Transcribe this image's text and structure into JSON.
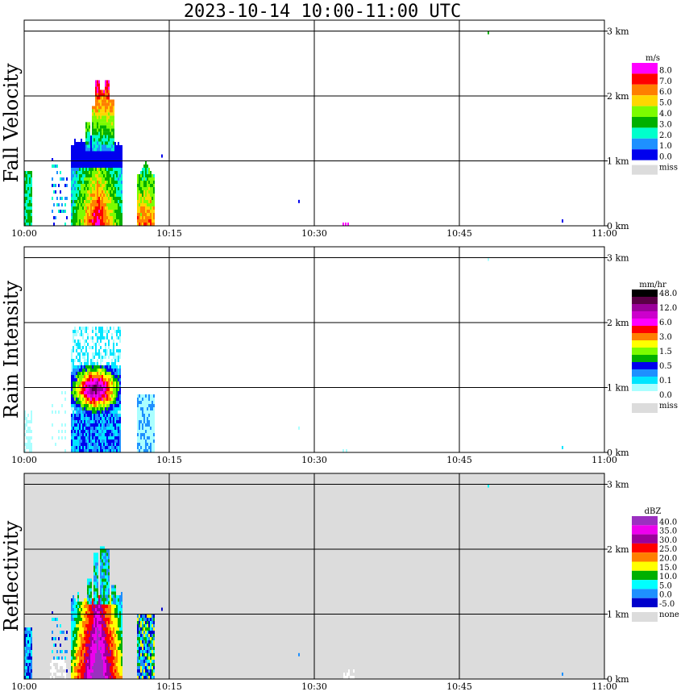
{
  "title": "2023-10-14  10:00-11:00 UTC",
  "x_ticks": [
    "10:00",
    "10:15",
    "10:30",
    "10:45",
    "11:00"
  ],
  "y_ticks": [
    "0 km",
    "1 km",
    "2 km",
    "3 km"
  ],
  "panels": [
    {
      "id": "fall-velocity",
      "ylabel": "Fall Velocity",
      "unit": "m/s",
      "background": "#ffffff",
      "legend": [
        {
          "label": "8.0",
          "color": "#ff00ff"
        },
        {
          "label": "7.0",
          "color": "#ff0000"
        },
        {
          "label": "6.0",
          "color": "#ff7f00"
        },
        {
          "label": "5.0",
          "color": "#ffd700"
        },
        {
          "label": "4.0",
          "color": "#7cfc00"
        },
        {
          "label": "3.0",
          "color": "#00b000"
        },
        {
          "label": "2.0",
          "color": "#00ffcc"
        },
        {
          "label": "1.0",
          "color": "#1e90ff"
        },
        {
          "label": "0.0",
          "color": "#0000ee"
        }
      ],
      "miss_label": "miss",
      "miss_color": "#dcdcdc"
    },
    {
      "id": "rain-intensity",
      "ylabel": "Rain Intensity",
      "unit": "mm/hr",
      "background": "#ffffff",
      "legend": [
        {
          "label": "48.0",
          "color": "#000000"
        },
        {
          "label": "",
          "color": "#5a0046"
        },
        {
          "label": "12.0",
          "color": "#9b009b"
        },
        {
          "label": "",
          "color": "#cc00cc"
        },
        {
          "label": "6.0",
          "color": "#ff00ff"
        },
        {
          "label": "",
          "color": "#ff0000"
        },
        {
          "label": "3.0",
          "color": "#ff7f00"
        },
        {
          "label": "",
          "color": "#ffff00"
        },
        {
          "label": "1.5",
          "color": "#7cfc00"
        },
        {
          "label": "",
          "color": "#00b000"
        },
        {
          "label": "0.5",
          "color": "#0000ee"
        },
        {
          "label": "",
          "color": "#1e90ff"
        },
        {
          "label": "0.1",
          "color": "#00e5ff"
        },
        {
          "label": "",
          "color": "#aaffff"
        },
        {
          "label": "0.0",
          "color": "#ffffff"
        }
      ],
      "miss_label": "miss",
      "miss_color": "#dcdcdc"
    },
    {
      "id": "reflectivity",
      "ylabel": "Reflectivity",
      "unit": "dBZ",
      "background": "#dcdcdc",
      "legend": [
        {
          "label": "40.0",
          "color": "#9b30c0"
        },
        {
          "label": "35.0",
          "color": "#ee00ee"
        },
        {
          "label": "30.0",
          "color": "#9b009b"
        },
        {
          "label": "25.0",
          "color": "#ff0000"
        },
        {
          "label": "20.0",
          "color": "#ff7f00"
        },
        {
          "label": "15.0",
          "color": "#ffff00"
        },
        {
          "label": "10.0",
          "color": "#00b000"
        },
        {
          "label": "5.0",
          "color": "#00ffff"
        },
        {
          "label": "0.0",
          "color": "#1e90ff"
        },
        {
          "label": "-5.0",
          "color": "#0000cc"
        }
      ],
      "miss_label": "none",
      "miss_color": "#dcdcdc"
    }
  ],
  "chart_data": [
    {
      "type": "heatmap",
      "title": "2023-10-14  10:00-11:00 UTC",
      "ylabel": "Fall Velocity",
      "colorbar_label": "m/s",
      "x_range": [
        "10:00",
        "11:00"
      ],
      "y_range_km": [
        0,
        3.2
      ],
      "grid": true,
      "features": [
        {
          "desc": "main rain shaft",
          "t_start": "10:05",
          "t_end": "10:10",
          "top_km": 2.2,
          "max_value": 8.0
        },
        {
          "desc": "trailing shaft",
          "t_start": "10:12",
          "t_end": "10:13",
          "top_km": 0.95
        },
        {
          "desc": "leading streaks",
          "t_start": "10:00",
          "t_end": "10:04",
          "top_km": 1.0
        }
      ]
    },
    {
      "type": "heatmap",
      "ylabel": "Rain Intensity",
      "colorbar_label": "mm/hr",
      "x_range": [
        "10:00",
        "11:00"
      ],
      "y_range_km": [
        0,
        3.2
      ],
      "grid": true,
      "features": [
        {
          "desc": "intense core near 1 km",
          "t_start": "10:06",
          "t_end": "10:09",
          "top_km": 2.0,
          "max_value": 48.0
        }
      ]
    },
    {
      "type": "heatmap",
      "ylabel": "Reflectivity",
      "colorbar_label": "dBZ",
      "x_range": [
        "10:00",
        "11:00"
      ],
      "y_range_km": [
        0,
        3.2
      ],
      "grid": true,
      "features": [
        {
          "desc": "main echo",
          "t_start": "10:05",
          "t_end": "10:10",
          "top_km": 2.0,
          "max_value": 40.0
        }
      ]
    }
  ]
}
